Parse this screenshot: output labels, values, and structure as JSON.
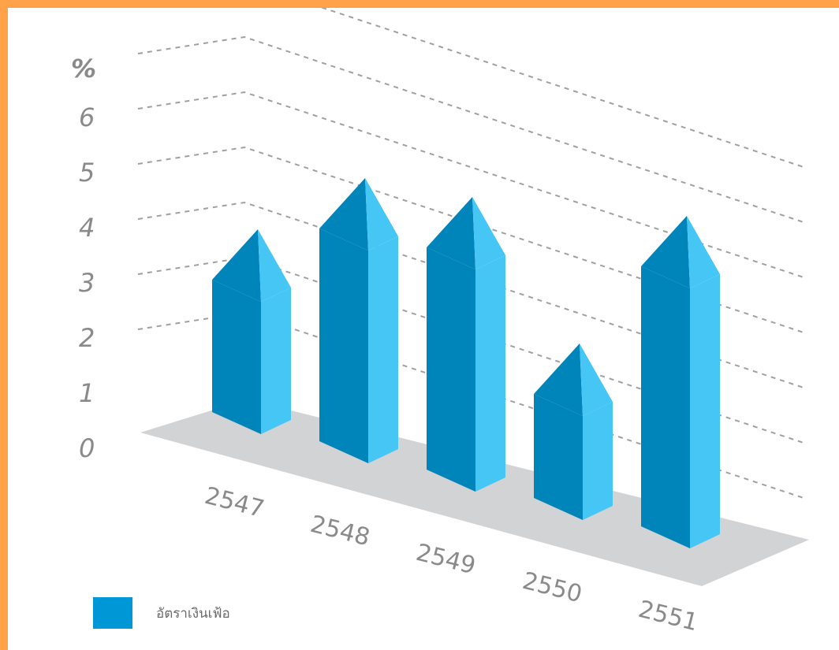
{
  "chart_data": {
    "type": "bar",
    "style": "3d-pencil",
    "y_unit_label": "%",
    "y_ticks": [
      "0",
      "1",
      "2",
      "3",
      "4",
      "5",
      "6"
    ],
    "ylim": [
      0,
      7
    ],
    "grid": true,
    "categories": [
      "2547",
      "2548",
      "2549",
      "2550",
      "2551"
    ],
    "series": [
      {
        "name": "อัตราเงินเฟ้อ",
        "values": [
          2.8,
          4.5,
          4.7,
          2.2,
          5.5
        ]
      }
    ],
    "legend_position": "bottom-left",
    "colors": {
      "bar_front": "#0085ba",
      "bar_side": "#45c6f5",
      "floor": "#d2d3d5",
      "grid": "#a0a0a0",
      "legend": "#0097d6",
      "frame": "#ffa24a"
    }
  }
}
